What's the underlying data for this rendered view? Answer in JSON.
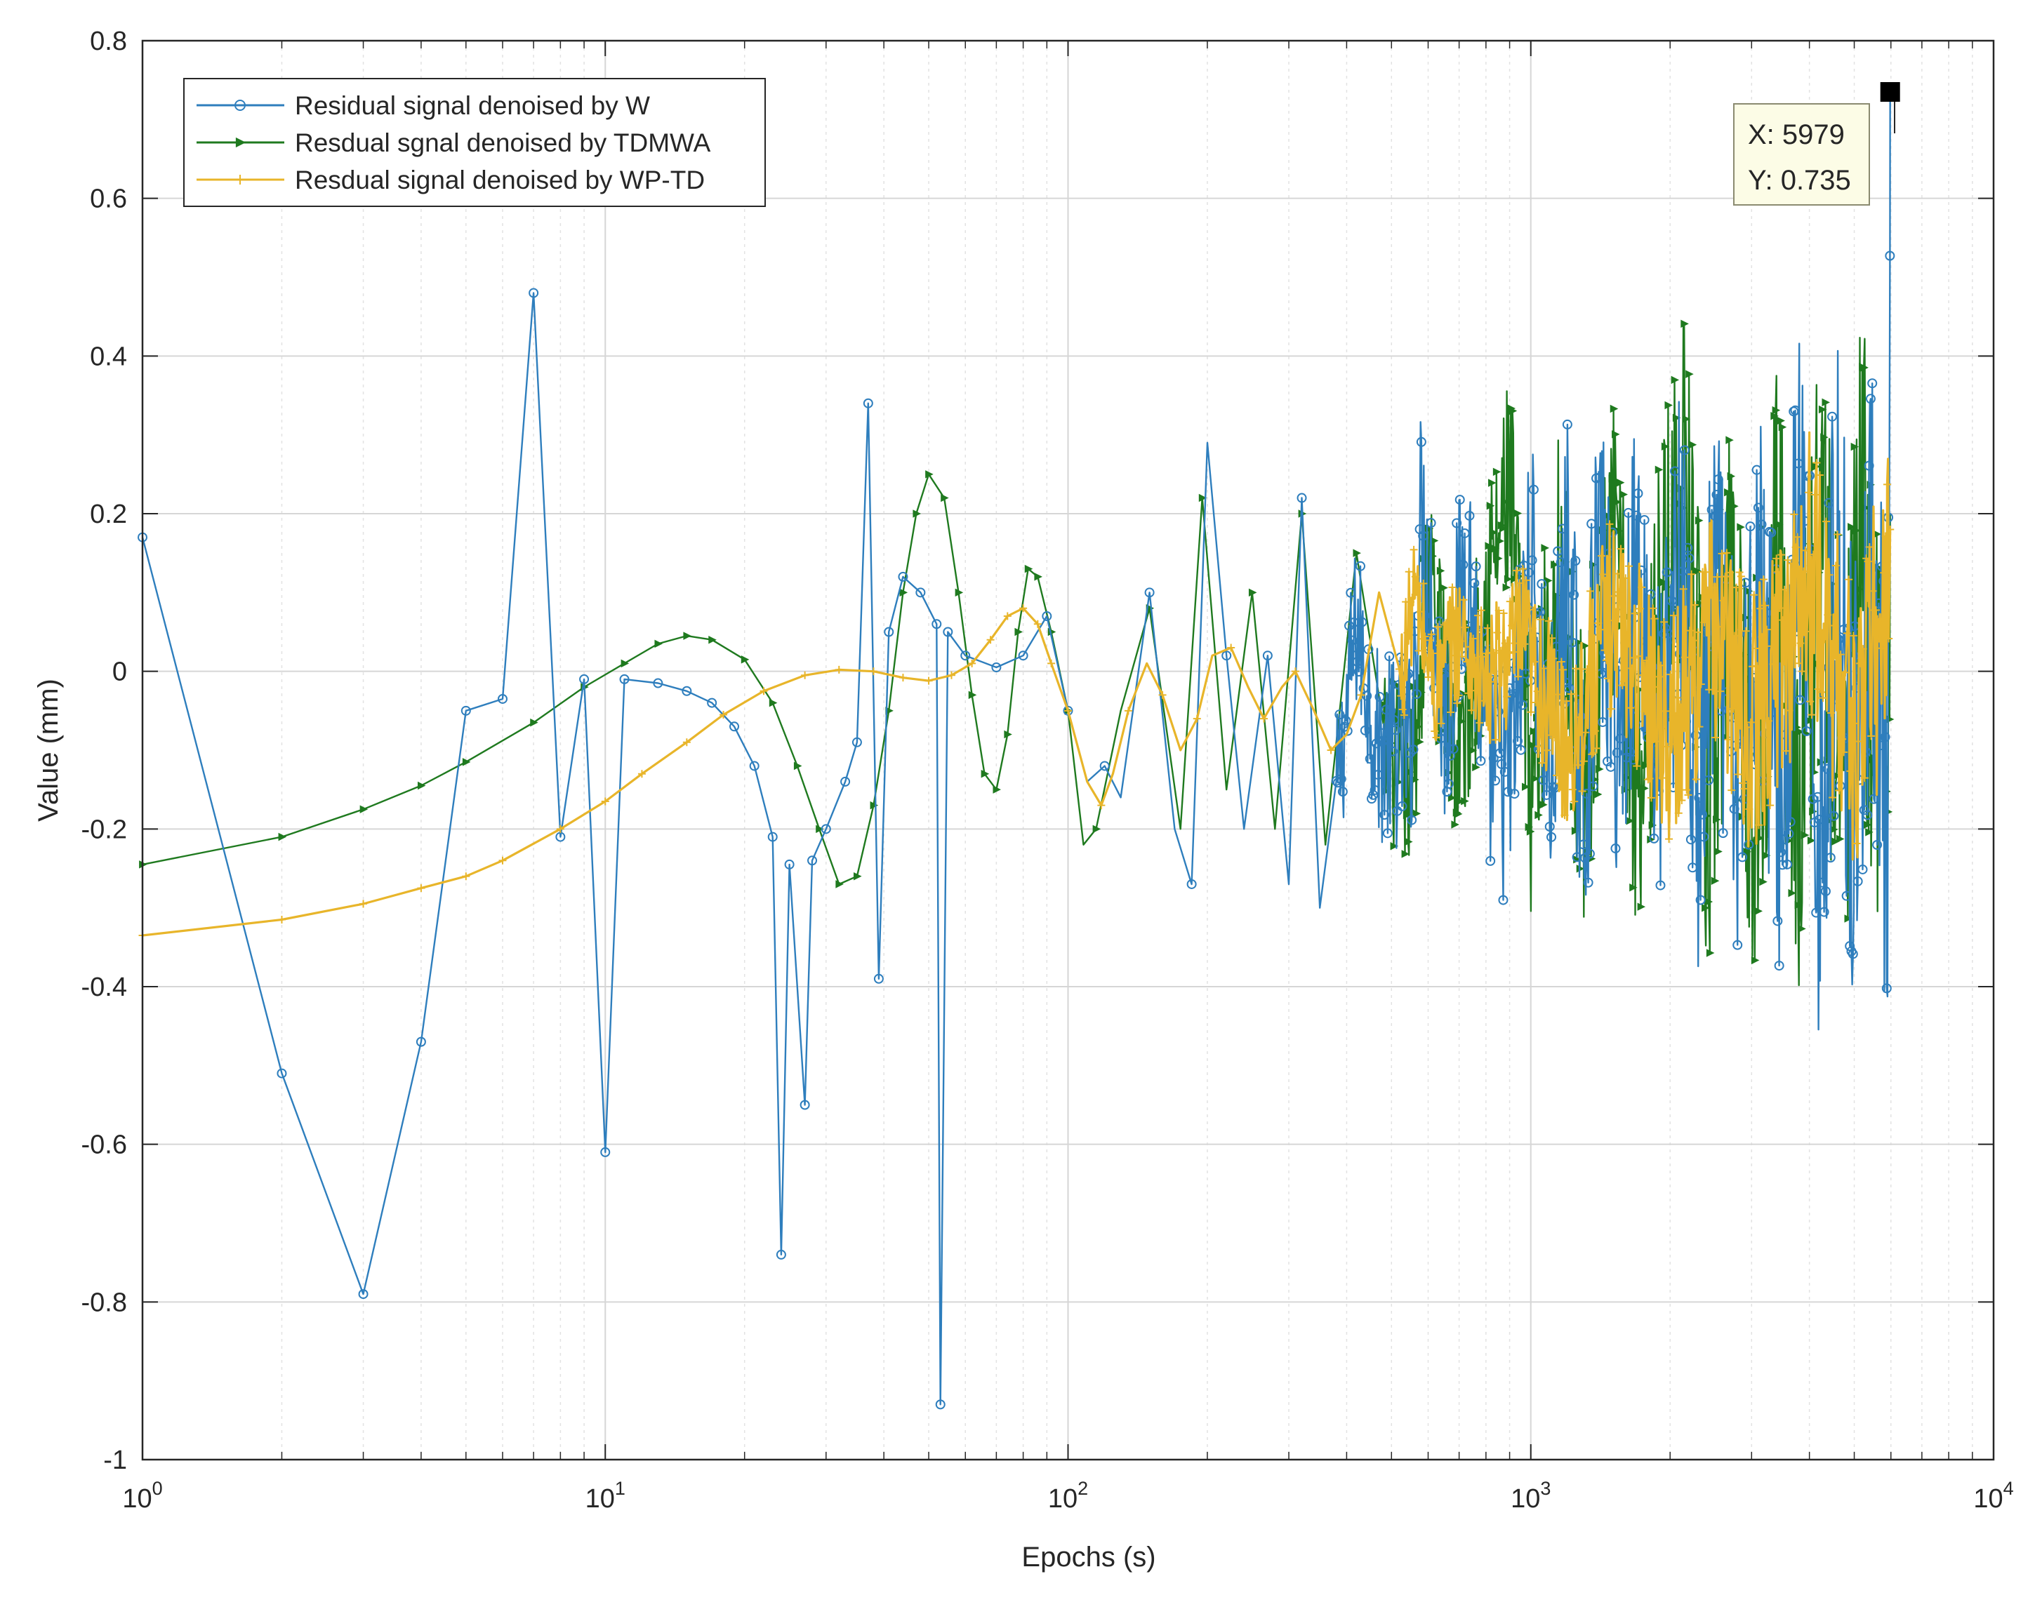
{
  "chart_data": {
    "type": "line",
    "title": "",
    "xlabel": "Epochs (s)",
    "ylabel": "Value (mm)",
    "xscale": "log",
    "xlim": [
      1,
      10000
    ],
    "ylim": [
      -1,
      0.8
    ],
    "grid": true,
    "legend_position": "top-left",
    "x_tick_labels": [
      {
        "base": "10",
        "exp": "0"
      },
      {
        "base": "10",
        "exp": "1"
      },
      {
        "base": "10",
        "exp": "2"
      },
      {
        "base": "10",
        "exp": "3"
      },
      {
        "base": "10",
        "exp": "4"
      }
    ],
    "y_ticks": [
      0.8,
      0.6,
      0.4,
      0.2,
      0,
      -0.2,
      -0.4,
      -0.6,
      -0.8,
      -1
    ],
    "y_tick_labels": [
      "0.8",
      "0.6",
      "0.4",
      "0.2",
      "0",
      "-0.2",
      "-0.4",
      "-0.6",
      "-0.8",
      "-1"
    ],
    "series": [
      {
        "name": "Residual signal denoised by W",
        "color": "#2e7ebd",
        "marker": "circle",
        "points": [
          [
            1,
            0.17
          ],
          [
            2,
            -0.51
          ],
          [
            3,
            -0.79
          ],
          [
            4,
            -0.47
          ],
          [
            5,
            -0.05
          ],
          [
            6,
            -0.035
          ],
          [
            7,
            0.48
          ],
          [
            8,
            -0.21
          ],
          [
            9,
            -0.01
          ],
          [
            10,
            -0.61
          ],
          [
            11,
            -0.01
          ],
          [
            13,
            -0.015
          ],
          [
            15,
            -0.025
          ],
          [
            17,
            -0.04
          ],
          [
            19,
            -0.07
          ],
          [
            21,
            -0.12
          ],
          [
            23,
            -0.21
          ],
          [
            24,
            -0.74
          ],
          [
            25,
            -0.245
          ],
          [
            27,
            -0.55
          ],
          [
            28,
            -0.24
          ],
          [
            30,
            -0.2
          ],
          [
            33,
            -0.14
          ],
          [
            35,
            -0.09
          ],
          [
            37,
            0.34
          ],
          [
            39,
            -0.39
          ],
          [
            41,
            0.05
          ],
          [
            44,
            0.12
          ],
          [
            48,
            0.1
          ],
          [
            52,
            0.06
          ],
          [
            53,
            -0.93
          ],
          [
            55,
            0.05
          ],
          [
            60,
            0.02
          ],
          [
            70,
            0.005
          ],
          [
            80,
            0.02
          ],
          [
            90,
            0.07
          ],
          [
            100,
            -0.05
          ],
          [
            110,
            -0.14
          ],
          [
            120,
            -0.12
          ],
          [
            130,
            -0.16
          ],
          [
            150,
            0.1
          ],
          [
            170,
            -0.2
          ],
          [
            185,
            -0.27
          ],
          [
            200,
            0.29
          ],
          [
            220,
            0.02
          ],
          [
            240,
            -0.2
          ],
          [
            270,
            0.02
          ],
          [
            300,
            -0.27
          ],
          [
            320,
            0.22
          ],
          [
            350,
            -0.3
          ],
          [
            380,
            -0.33
          ],
          [
            420,
            0.12
          ],
          [
            470,
            -0.2
          ],
          [
            550,
            -0.2
          ],
          [
            580,
            0.43
          ],
          [
            650,
            -0.14
          ],
          [
            730,
            0.32
          ],
          [
            800,
            -0.22
          ],
          [
            900,
            -0.28
          ],
          [
            1000,
            0.28
          ],
          [
            1100,
            -0.3
          ],
          [
            1200,
            0.3
          ],
          [
            1300,
            -0.39
          ],
          [
            1400,
            0.32
          ],
          [
            1550,
            -0.18
          ],
          [
            1700,
            0.28
          ],
          [
            1900,
            -0.22
          ],
          [
            2100,
            0.3
          ],
          [
            2300,
            -0.38
          ],
          [
            2500,
            0.22
          ],
          [
            2800,
            -0.32
          ],
          [
            3100,
            0.27
          ],
          [
            3500,
            -0.38
          ],
          [
            3800,
            0.4
          ],
          [
            4200,
            -0.42
          ],
          [
            4600,
            0.3
          ],
          [
            5000,
            -0.3
          ],
          [
            5500,
            0.27
          ],
          [
            5900,
            -0.49
          ],
          [
            5979,
            0.735
          ]
        ],
        "noise_from_x": 380,
        "noise_amplitude": 0.3
      },
      {
        "name": "Resdual sgnal denoised by TDMWA",
        "color": "#1f7a1f",
        "marker": "triangle",
        "points": [
          [
            1,
            -0.245
          ],
          [
            2,
            -0.21
          ],
          [
            3,
            -0.175
          ],
          [
            4,
            -0.145
          ],
          [
            5,
            -0.115
          ],
          [
            7,
            -0.065
          ],
          [
            9,
            -0.02
          ],
          [
            11,
            0.01
          ],
          [
            13,
            0.035
          ],
          [
            15,
            0.045
          ],
          [
            17,
            0.04
          ],
          [
            20,
            0.015
          ],
          [
            23,
            -0.04
          ],
          [
            26,
            -0.12
          ],
          [
            29,
            -0.2
          ],
          [
            32,
            -0.27
          ],
          [
            35,
            -0.26
          ],
          [
            38,
            -0.17
          ],
          [
            41,
            -0.05
          ],
          [
            44,
            0.1
          ],
          [
            47,
            0.2
          ],
          [
            50,
            0.25
          ],
          [
            54,
            0.22
          ],
          [
            58,
            0.1
          ],
          [
            62,
            -0.03
          ],
          [
            66,
            -0.13
          ],
          [
            70,
            -0.15
          ],
          [
            74,
            -0.08
          ],
          [
            78,
            0.05
          ],
          [
            82,
            0.13
          ],
          [
            86,
            0.12
          ],
          [
            92,
            0.05
          ],
          [
            100,
            -0.05
          ],
          [
            108,
            -0.22
          ],
          [
            115,
            -0.2
          ],
          [
            130,
            -0.05
          ],
          [
            150,
            0.08
          ],
          [
            175,
            -0.2
          ],
          [
            195,
            0.22
          ],
          [
            220,
            -0.15
          ],
          [
            250,
            0.1
          ],
          [
            280,
            -0.2
          ],
          [
            320,
            0.2
          ],
          [
            360,
            -0.22
          ],
          [
            420,
            0.15
          ],
          [
            480,
            -0.2
          ],
          [
            550,
            -0.3
          ],
          [
            600,
            0.24
          ],
          [
            700,
            -0.25
          ],
          [
            800,
            0.2
          ],
          [
            900,
            0.46
          ],
          [
            1000,
            -0.3
          ],
          [
            1150,
            0.3
          ],
          [
            1300,
            -0.3
          ],
          [
            1500,
            0.33
          ],
          [
            1700,
            -0.28
          ],
          [
            2000,
            0.3
          ],
          [
            2150,
            0.5
          ],
          [
            2400,
            -0.39
          ],
          [
            2700,
            0.32
          ],
          [
            3000,
            -0.33
          ],
          [
            3400,
            0.28
          ],
          [
            3800,
            -0.3
          ],
          [
            4200,
            0.33
          ],
          [
            4700,
            -0.3
          ],
          [
            5200,
            0.35
          ],
          [
            5700,
            -0.25
          ],
          [
            5979,
            0.2
          ]
        ],
        "noise_from_x": 480,
        "noise_amplitude": 0.3
      },
      {
        "name": "Resdual signal denoised by WP-TD",
        "color": "#e8b52a",
        "marker": "plus",
        "points": [
          [
            1,
            -0.335
          ],
          [
            2,
            -0.315
          ],
          [
            3,
            -0.295
          ],
          [
            4,
            -0.275
          ],
          [
            5,
            -0.26
          ],
          [
            6,
            -0.24
          ],
          [
            8,
            -0.2
          ],
          [
            10,
            -0.165
          ],
          [
            12,
            -0.13
          ],
          [
            15,
            -0.09
          ],
          [
            18,
            -0.055
          ],
          [
            22,
            -0.025
          ],
          [
            27,
            -0.005
          ],
          [
            32,
            0.002
          ],
          [
            38,
            0.0
          ],
          [
            44,
            -0.008
          ],
          [
            50,
            -0.012
          ],
          [
            56,
            -0.005
          ],
          [
            62,
            0.01
          ],
          [
            68,
            0.04
          ],
          [
            74,
            0.07
          ],
          [
            80,
            0.08
          ],
          [
            86,
            0.06
          ],
          [
            92,
            0.01
          ],
          [
            100,
            -0.05
          ],
          [
            110,
            -0.14
          ],
          [
            118,
            -0.17
          ],
          [
            125,
            -0.13
          ],
          [
            135,
            -0.05
          ],
          [
            148,
            0.01
          ],
          [
            160,
            -0.03
          ],
          [
            175,
            -0.1
          ],
          [
            190,
            -0.06
          ],
          [
            205,
            0.02
          ],
          [
            225,
            0.03
          ],
          [
            245,
            -0.02
          ],
          [
            265,
            -0.06
          ],
          [
            290,
            -0.02
          ],
          [
            310,
            0.0
          ],
          [
            340,
            -0.05
          ],
          [
            370,
            -0.1
          ],
          [
            400,
            -0.08
          ],
          [
            430,
            -0.03
          ],
          [
            470,
            0.1
          ],
          [
            520,
            -0.05
          ],
          [
            560,
            0.2
          ],
          [
            620,
            -0.05
          ],
          [
            700,
            0.1
          ],
          [
            800,
            -0.05
          ],
          [
            950,
            0.08
          ],
          [
            1200,
            -0.2
          ],
          [
            1500,
            0.15
          ],
          [
            2000,
            -0.15
          ],
          [
            2500,
            0.12
          ],
          [
            3000,
            -0.15
          ],
          [
            4000,
            0.25
          ],
          [
            5000,
            -0.15
          ],
          [
            5979,
            0.18
          ]
        ],
        "noise_from_x": 520,
        "noise_amplitude": 0.2
      }
    ],
    "datatip": {
      "x_label": "X: 5979",
      "y_label": "Y: 0.735",
      "x": 5979,
      "y": 0.735
    }
  }
}
